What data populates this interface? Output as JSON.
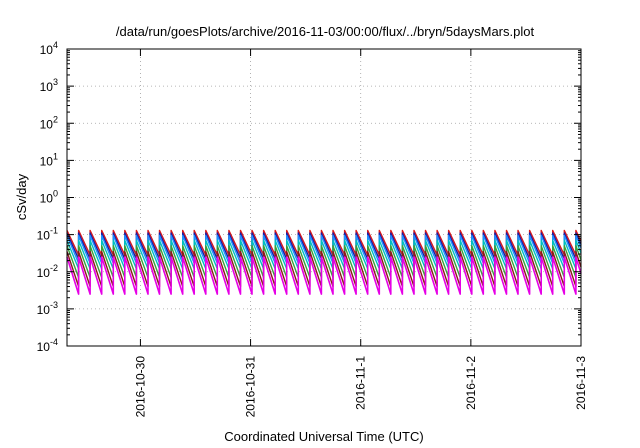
{
  "chart_data": {
    "type": "line",
    "title": "/data/run/goesPlots/archive/2016-11-03/00:00/flux/../bryn/5daysMars.plot",
    "xlabel": "Coordinated Universal Time (UTC)",
    "ylabel": "cSv/day",
    "yscale": "log",
    "ylim": [
      0.0001,
      10000
    ],
    "xlim": [
      "2016-10-29T08:00",
      "2016-11-03T00:00"
    ],
    "grid": true,
    "x_ticks": [
      "2016-10-30",
      "2016-10-31",
      "2016-11-1",
      "2016-11-2",
      "2016-11-3"
    ],
    "y_ticks": [
      {
        "base": "10",
        "exp": "-4"
      },
      {
        "base": "10",
        "exp": "-3"
      },
      {
        "base": "10",
        "exp": "-2"
      },
      {
        "base": "10",
        "exp": "-1"
      },
      {
        "base": "10",
        "exp": "0"
      },
      {
        "base": "10",
        "exp": "1"
      },
      {
        "base": "10",
        "exp": "2"
      },
      {
        "base": "10",
        "exp": "3"
      },
      {
        "base": "10",
        "exp": "4"
      }
    ],
    "cycle_hours": 2.52,
    "series": [
      {
        "color": "#d7191c",
        "peak": 0.13,
        "trough": 0.028
      },
      {
        "color": "#1a1aa6",
        "peak": 0.11,
        "trough": 0.022
      },
      {
        "color": "#1e90ff",
        "peak": 0.095,
        "trough": 0.017
      },
      {
        "color": "#00bfbf",
        "peak": 0.07,
        "trough": 0.012
      },
      {
        "color": "#3aa03a",
        "peak": 0.05,
        "trough": 0.007
      },
      {
        "color": "#8b1a1a",
        "peak": 0.035,
        "trough": 0.004
      },
      {
        "color": "#e600e6",
        "peak": 0.025,
        "trough": 0.0025
      }
    ]
  }
}
